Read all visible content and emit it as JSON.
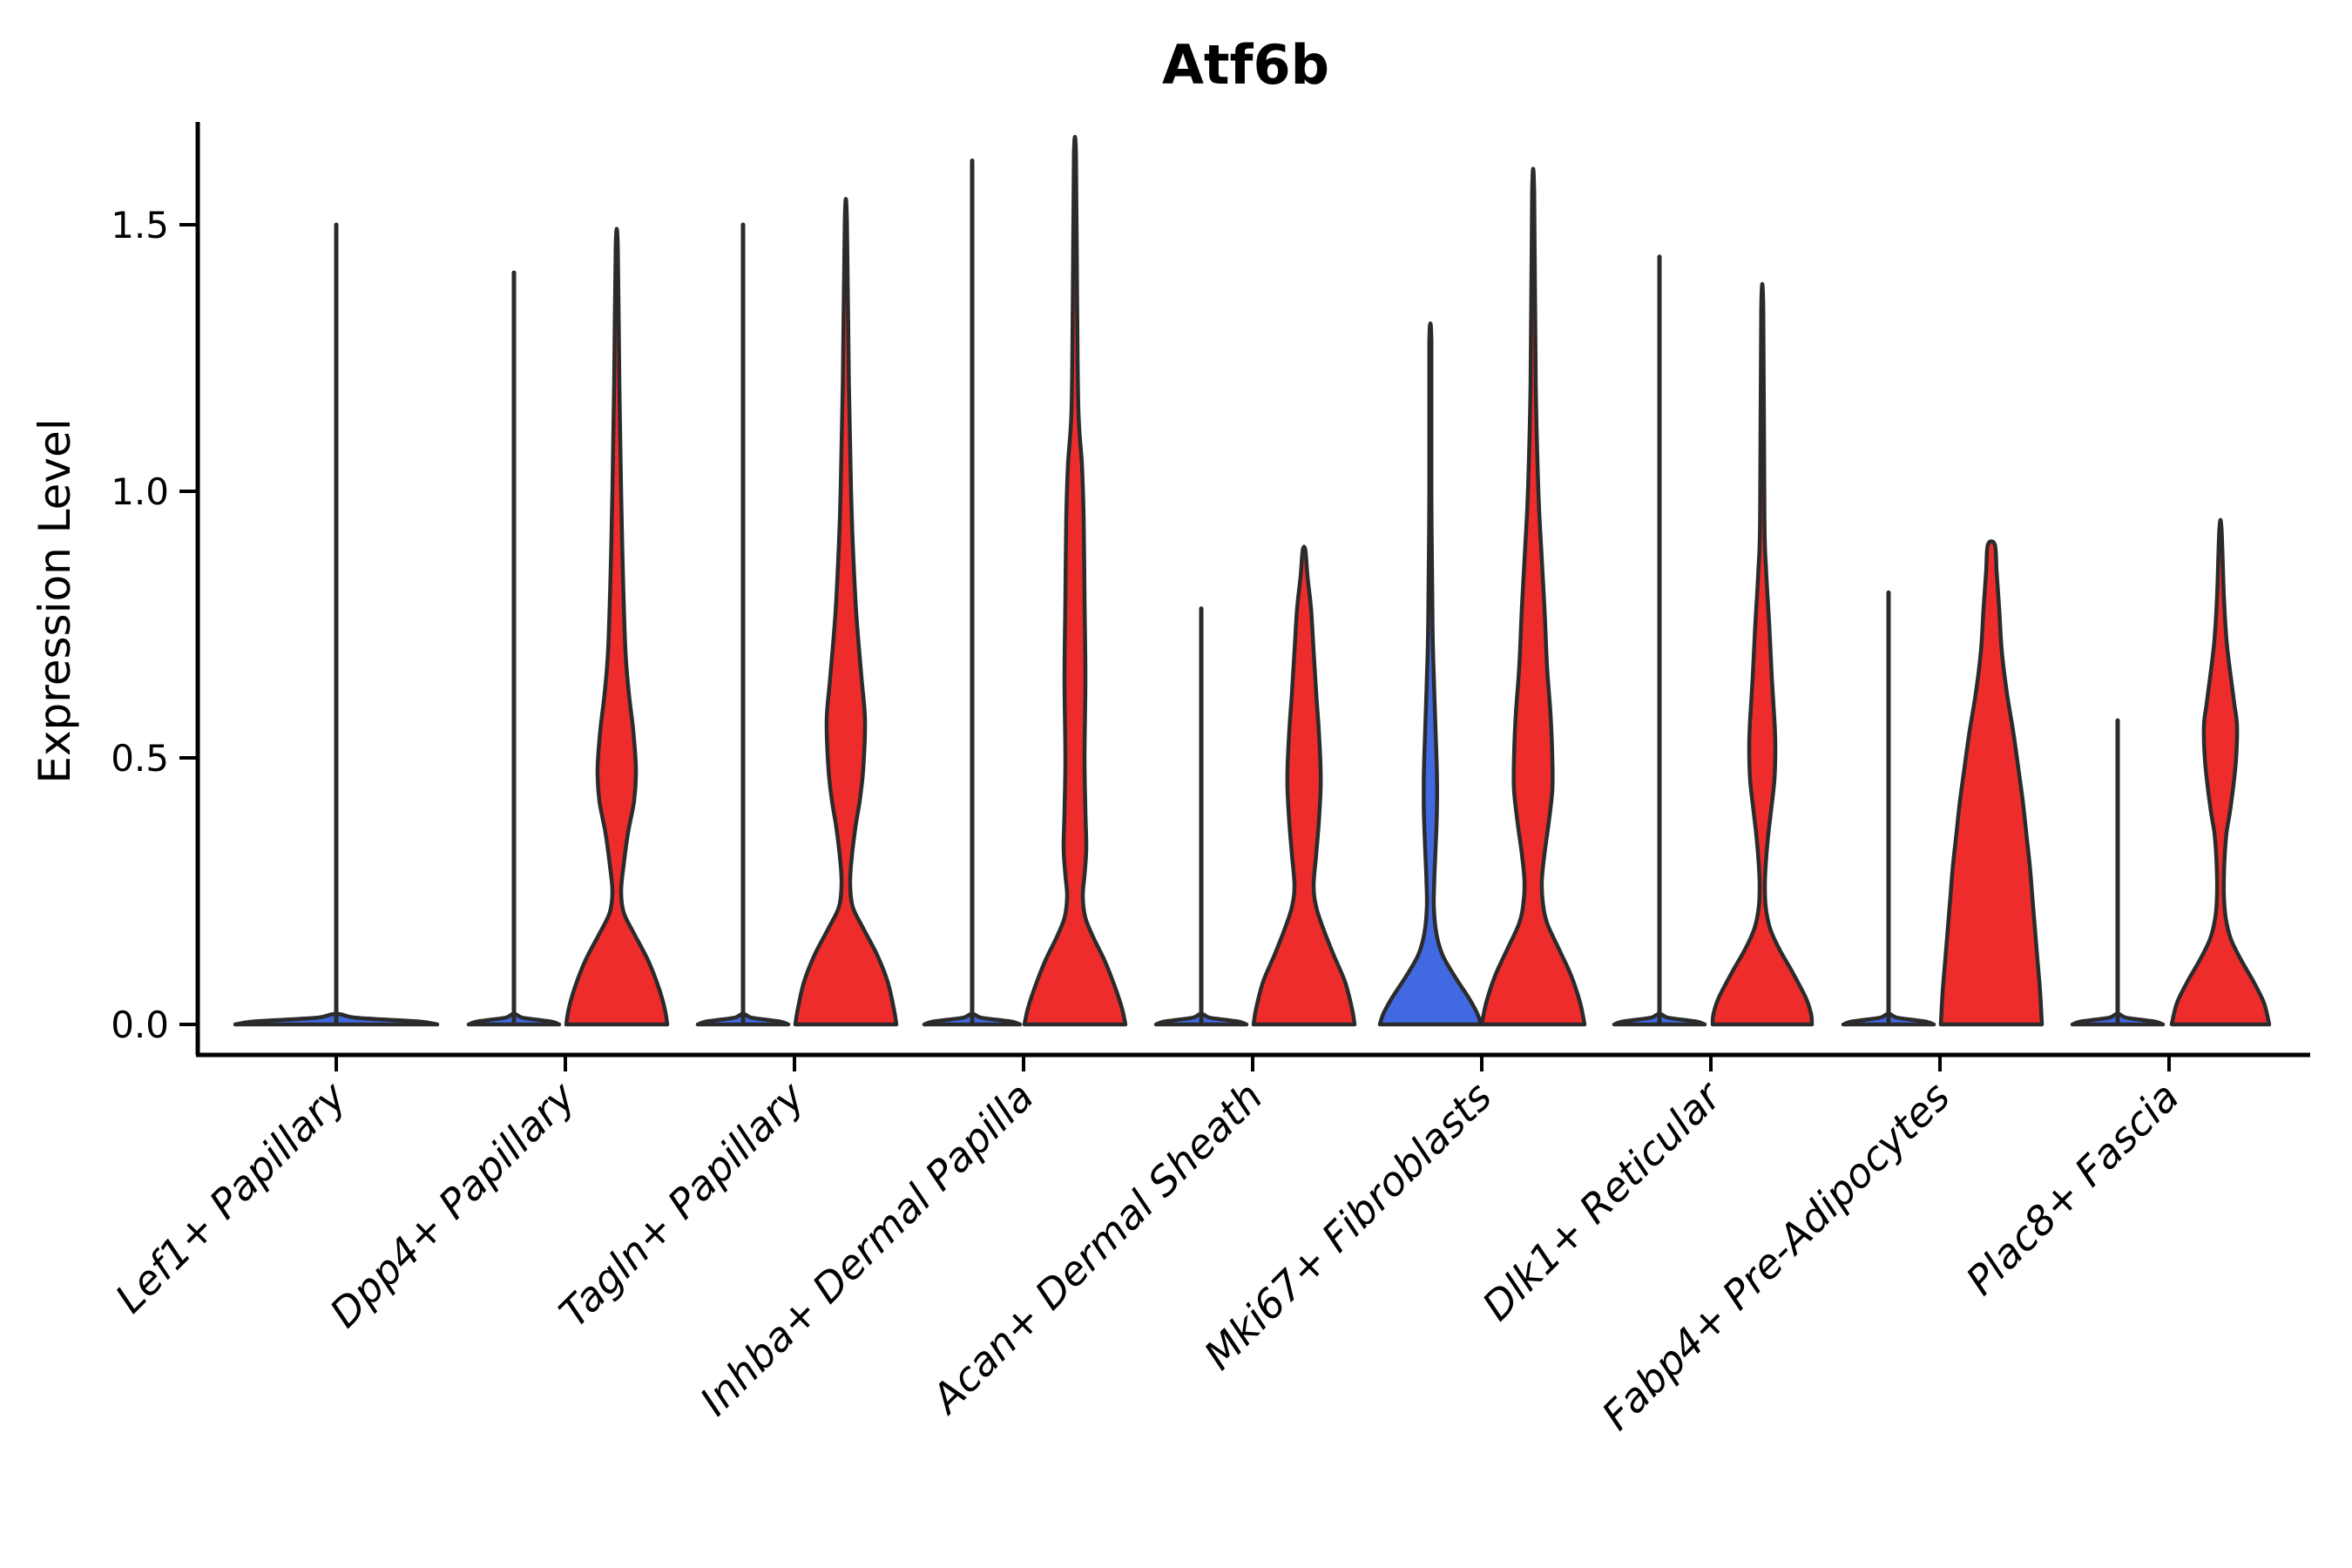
{
  "chart_data": {
    "type": "violin",
    "title": "Atf6b",
    "xlabel": "",
    "ylabel": "Expression Level",
    "yticks": [
      {
        "value": 0.0,
        "label": "0.0"
      },
      {
        "value": 0.5,
        "label": "0.5"
      },
      {
        "value": 1.0,
        "label": "1.0"
      },
      {
        "value": 1.5,
        "label": "1.5"
      }
    ],
    "ylim": [
      -0.06,
      1.69
    ],
    "grid": false,
    "legend": "none",
    "categories": [
      "Lef1+ Papillary",
      "Dpp4+ Papillary",
      "Tagln+ Papillary",
      "Inhba+ Dermal Papilla",
      "Acan+ Dermal Sheath",
      "Mki67+ Fibroblasts",
      "Dlk1+ Reticular",
      "Fabp4+ Pre-Adipocytes",
      "Plac8+ Fascia"
    ],
    "colors": {
      "red": "#EE2C2C",
      "blue": "#4169E1",
      "outline": "#2B2B2B",
      "axis": "#000000"
    },
    "violins": [
      {
        "category": 0,
        "slot": "center",
        "style": "spike",
        "fill": "blue",
        "max": 1.5,
        "base_halfwidth": 116
      },
      {
        "category": 1,
        "slot": "left",
        "style": "spike",
        "fill": "blue",
        "max": 1.41,
        "base_halfwidth": 52
      },
      {
        "category": 1,
        "slot": "right",
        "style": "full",
        "fill": "red",
        "max": 1.46,
        "profile": [
          [
            0,
            58
          ],
          [
            0.03,
            55
          ],
          [
            0.07,
            48
          ],
          [
            0.12,
            36
          ],
          [
            0.17,
            20
          ],
          [
            0.21,
            8
          ],
          [
            0.25,
            5
          ],
          [
            0.3,
            8
          ],
          [
            0.36,
            13
          ],
          [
            0.42,
            20
          ],
          [
            0.48,
            22
          ],
          [
            0.55,
            19
          ],
          [
            0.62,
            14
          ],
          [
            0.7,
            10
          ],
          [
            0.85,
            7
          ],
          [
            1.0,
            5
          ],
          [
            1.2,
            3
          ],
          [
            1.46,
            1.2
          ]
        ]
      },
      {
        "category": 2,
        "slot": "left",
        "style": "spike",
        "fill": "blue",
        "max": 1.5,
        "base_halfwidth": 52
      },
      {
        "category": 2,
        "slot": "right",
        "style": "full",
        "fill": "red",
        "max": 1.51,
        "profile": [
          [
            0,
            58
          ],
          [
            0.03,
            55
          ],
          [
            0.08,
            48
          ],
          [
            0.13,
            36
          ],
          [
            0.18,
            20
          ],
          [
            0.22,
            8
          ],
          [
            0.26,
            5
          ],
          [
            0.3,
            6
          ],
          [
            0.37,
            11
          ],
          [
            0.42,
            16
          ],
          [
            0.48,
            20
          ],
          [
            0.57,
            22
          ],
          [
            0.65,
            18
          ],
          [
            0.77,
            12
          ],
          [
            0.9,
            8
          ],
          [
            1.0,
            6
          ],
          [
            1.2,
            3.5
          ],
          [
            1.51,
            1.2
          ]
        ]
      },
      {
        "category": 3,
        "slot": "left",
        "style": "spike",
        "fill": "blue",
        "max": 1.62,
        "base_halfwidth": 55
      },
      {
        "category": 3,
        "slot": "right",
        "style": "full",
        "fill": "red",
        "max": 1.63,
        "profile": [
          [
            0,
            58
          ],
          [
            0.03,
            54
          ],
          [
            0.07,
            46
          ],
          [
            0.12,
            34
          ],
          [
            0.16,
            22
          ],
          [
            0.2,
            12
          ],
          [
            0.24,
            9
          ],
          [
            0.28,
            11
          ],
          [
            0.33,
            13
          ],
          [
            0.4,
            12
          ],
          [
            0.5,
            11
          ],
          [
            0.65,
            12
          ],
          [
            0.8,
            11
          ],
          [
            0.95,
            10
          ],
          [
            1.05,
            8
          ],
          [
            1.15,
            4
          ],
          [
            1.35,
            2.5
          ],
          [
            1.63,
            1.2
          ]
        ]
      },
      {
        "category": 4,
        "slot": "left",
        "style": "spike",
        "fill": "blue",
        "max": 0.78,
        "base_halfwidth": 52
      },
      {
        "category": 4,
        "slot": "right",
        "style": "full",
        "fill": "red",
        "max": 0.89,
        "profile": [
          [
            0,
            58
          ],
          [
            0.03,
            55
          ],
          [
            0.08,
            47
          ],
          [
            0.13,
            34
          ],
          [
            0.18,
            22
          ],
          [
            0.22,
            14
          ],
          [
            0.26,
            11
          ],
          [
            0.32,
            14
          ],
          [
            0.38,
            17
          ],
          [
            0.44,
            19
          ],
          [
            0.48,
            19
          ],
          [
            0.55,
            17
          ],
          [
            0.62,
            14
          ],
          [
            0.7,
            11
          ],
          [
            0.78,
            8
          ],
          [
            0.84,
            4
          ],
          [
            0.89,
            1.5
          ]
        ]
      },
      {
        "category": 5,
        "slot": "left",
        "style": "full",
        "fill": "blue",
        "max": 1.28,
        "profile": [
          [
            0,
            58
          ],
          [
            0.02,
            54
          ],
          [
            0.05,
            44
          ],
          [
            0.09,
            28
          ],
          [
            0.13,
            14
          ],
          [
            0.17,
            7
          ],
          [
            0.22,
            4
          ],
          [
            0.27,
            4.5
          ],
          [
            0.33,
            6
          ],
          [
            0.4,
            7.5
          ],
          [
            0.47,
            7.5
          ],
          [
            0.55,
            6
          ],
          [
            0.65,
            4
          ],
          [
            0.75,
            2.5
          ],
          [
            1.0,
            1.2
          ],
          [
            1.28,
            1.2
          ]
        ]
      },
      {
        "category": 5,
        "slot": "right",
        "style": "full",
        "fill": "red",
        "max": 1.56,
        "profile": [
          [
            0,
            59
          ],
          [
            0.04,
            54
          ],
          [
            0.09,
            44
          ],
          [
            0.14,
            30
          ],
          [
            0.19,
            16
          ],
          [
            0.23,
            11
          ],
          [
            0.27,
            10
          ],
          [
            0.32,
            13
          ],
          [
            0.38,
            18
          ],
          [
            0.44,
            22
          ],
          [
            0.5,
            22
          ],
          [
            0.58,
            20
          ],
          [
            0.67,
            16
          ],
          [
            0.78,
            13
          ],
          [
            0.9,
            9
          ],
          [
            1.0,
            6
          ],
          [
            1.2,
            3
          ],
          [
            1.56,
            1.2
          ]
        ]
      },
      {
        "category": 6,
        "slot": "left",
        "style": "spike",
        "fill": "blue",
        "max": 1.44,
        "base_halfwidth": 52
      },
      {
        "category": 6,
        "slot": "right",
        "style": "full",
        "fill": "red",
        "max": 1.34,
        "profile": [
          [
            0,
            57
          ],
          [
            0.02,
            56
          ],
          [
            0.05,
            50
          ],
          [
            0.1,
            34
          ],
          [
            0.14,
            20
          ],
          [
            0.18,
            9
          ],
          [
            0.22,
            4
          ],
          [
            0.26,
            3
          ],
          [
            0.3,
            4
          ],
          [
            0.35,
            6.5
          ],
          [
            0.4,
            10
          ],
          [
            0.46,
            14
          ],
          [
            0.52,
            15
          ],
          [
            0.57,
            14
          ],
          [
            0.65,
            11
          ],
          [
            0.75,
            8
          ],
          [
            0.85,
            4.5
          ],
          [
            0.95,
            2.5
          ],
          [
            1.34,
            1.2
          ]
        ]
      },
      {
        "category": 7,
        "slot": "left",
        "style": "spike",
        "fill": "blue",
        "max": 0.81,
        "base_halfwidth": 52
      },
      {
        "category": 7,
        "slot": "right",
        "style": "full",
        "fill": "red",
        "max": 0.9,
        "profile": [
          [
            0,
            58
          ],
          [
            0.06,
            56
          ],
          [
            0.12,
            53
          ],
          [
            0.18,
            50
          ],
          [
            0.24,
            47
          ],
          [
            0.3,
            44
          ],
          [
            0.36,
            40
          ],
          [
            0.42,
            36
          ],
          [
            0.48,
            31
          ],
          [
            0.55,
            25
          ],
          [
            0.62,
            18
          ],
          [
            0.7,
            12
          ],
          [
            0.78,
            9
          ],
          [
            0.85,
            6
          ],
          [
            0.9,
            4
          ]
        ]
      },
      {
        "category": 8,
        "slot": "left",
        "style": "spike",
        "fill": "blue",
        "max": 0.57,
        "base_halfwidth": 52
      },
      {
        "category": 8,
        "slot": "right",
        "style": "full",
        "fill": "red",
        "max": 0.93,
        "profile": [
          [
            0,
            56
          ],
          [
            0.04,
            50
          ],
          [
            0.08,
            38
          ],
          [
            0.12,
            24
          ],
          [
            0.16,
            12
          ],
          [
            0.2,
            6
          ],
          [
            0.24,
            4
          ],
          [
            0.28,
            4
          ],
          [
            0.32,
            5
          ],
          [
            0.36,
            7
          ],
          [
            0.4,
            11
          ],
          [
            0.45,
            15
          ],
          [
            0.5,
            18
          ],
          [
            0.56,
            19
          ],
          [
            0.6,
            16
          ],
          [
            0.65,
            12
          ],
          [
            0.72,
            7
          ],
          [
            0.8,
            4
          ],
          [
            0.93,
            1.2
          ]
        ]
      }
    ]
  }
}
